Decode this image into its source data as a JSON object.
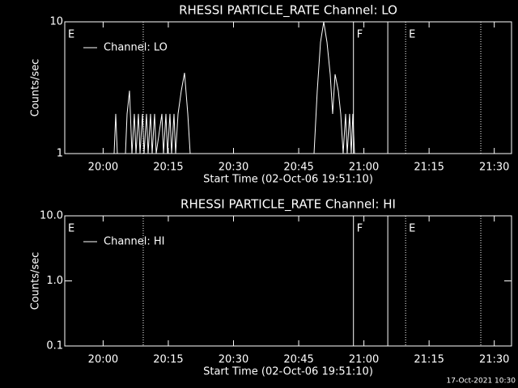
{
  "chart_data": [
    {
      "type": "line",
      "title": "RHESSI PARTICLE_RATE Channel: LO",
      "xlabel": "Start Time (02-Oct-06 19:51:10)",
      "ylabel": "Counts/sec",
      "log_y": true,
      "xlim": [
        1191.17,
        1293.97
      ],
      "ylim": [
        1,
        10
      ],
      "xticks": [
        {
          "value": 1200,
          "label": "20:00"
        },
        {
          "value": 1215,
          "label": "20:15"
        },
        {
          "value": 1230,
          "label": "20:30"
        },
        {
          "value": 1245,
          "label": "20:45"
        },
        {
          "value": 1260,
          "label": "21:00"
        },
        {
          "value": 1275,
          "label": "21:15"
        },
        {
          "value": 1290,
          "label": "21:30"
        }
      ],
      "yticks": [
        1,
        10
      ],
      "x": [
        1191.17,
        1202.53,
        1202.9,
        1203.27,
        1205.14,
        1205.51,
        1206.07,
        1206.63,
        1207.18,
        1207.56,
        1208.12,
        1208.49,
        1209.05,
        1209.42,
        1209.98,
        1210.35,
        1210.91,
        1211.28,
        1211.84,
        1212.21,
        1213.52,
        1213.89,
        1214.45,
        1214.82,
        1215.38,
        1215.75,
        1216.31,
        1216.68,
        1217.24,
        1217.99,
        1218.73,
        1219.48,
        1220.03,
        1248.53,
        1249.27,
        1250.02,
        1250.76,
        1251.51,
        1252.25,
        1252.81,
        1253.37,
        1254.11,
        1254.67,
        1255.23,
        1255.79,
        1256.16,
        1256.72,
        1257.09,
        1257.46,
        1257.84,
        1258.77
      ],
      "series": [
        {
          "name": "Channel: LO",
          "color": "#ffffff",
          "values": [
            1,
            1,
            2,
            1,
            1,
            2,
            3,
            1,
            2,
            1,
            2,
            1,
            2,
            1,
            2,
            1,
            2,
            1,
            2,
            1,
            2,
            1,
            2,
            1,
            2,
            1,
            2,
            1,
            2,
            3,
            4.1,
            2,
            1,
            1,
            3,
            7,
            10,
            7,
            4,
            2,
            4,
            3,
            2,
            1,
            2,
            1,
            2,
            1,
            2,
            1,
            1
          ]
        }
      ],
      "vlines": [
        {
          "x": 1209.23,
          "style": "dotted"
        },
        {
          "x": 1257.6,
          "style": "solid"
        },
        {
          "x": 1265.5,
          "style": "solid"
        },
        {
          "x": 1269.6,
          "style": "dotted"
        },
        {
          "x": 1286.9,
          "style": "dotted"
        }
      ],
      "flags": [
        {
          "x": 1191.17,
          "text": "E"
        },
        {
          "x": 1257.6,
          "text": "F"
        },
        {
          "x": 1269.6,
          "text": "E"
        }
      ]
    },
    {
      "type": "line",
      "title": "RHESSI PARTICLE_RATE Channel: HI",
      "xlabel": "Start Time (02-Oct-06 19:51:10)",
      "ylabel": "Counts/sec",
      "log_y": true,
      "xlim": [
        1191.17,
        1293.97
      ],
      "ylim": [
        0.1,
        10
      ],
      "xticks": [
        {
          "value": 1200,
          "label": "20:00"
        },
        {
          "value": 1215,
          "label": "20:15"
        },
        {
          "value": 1230,
          "label": "20:30"
        },
        {
          "value": 1245,
          "label": "20:45"
        },
        {
          "value": 1260,
          "label": "21:00"
        },
        {
          "value": 1275,
          "label": "21:15"
        },
        {
          "value": 1290,
          "label": "21:30"
        }
      ],
      "yticks": [
        0.1,
        {
          "value": 1,
          "label": "1.0"
        },
        {
          "value": 10,
          "label": "10.0"
        }
      ],
      "x": [],
      "series": [
        {
          "name": "Channel: HI",
          "color": "#ffffff",
          "values": []
        }
      ],
      "vlines": [
        {
          "x": 1209.23,
          "style": "dotted"
        },
        {
          "x": 1257.6,
          "style": "solid"
        },
        {
          "x": 1265.5,
          "style": "solid"
        },
        {
          "x": 1269.6,
          "style": "dotted"
        },
        {
          "x": 1286.9,
          "style": "dotted"
        }
      ],
      "flags": [
        {
          "x": 1191.17,
          "text": "E"
        },
        {
          "x": 1257.6,
          "text": "F"
        },
        {
          "x": 1269.6,
          "text": "E"
        }
      ]
    }
  ],
  "footer": "17-Oct-2021 10:30"
}
